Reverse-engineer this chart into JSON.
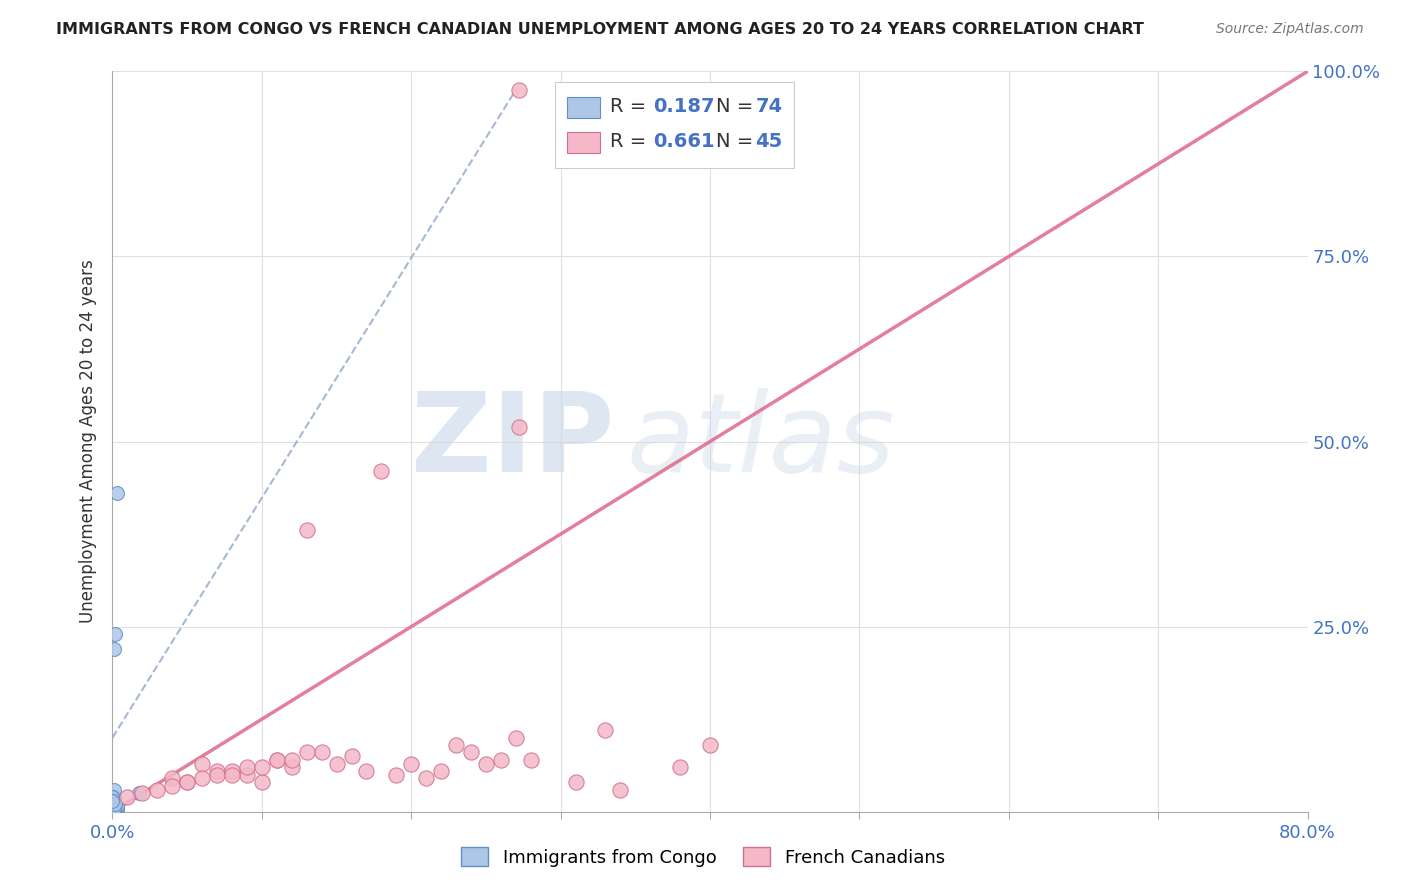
{
  "title": "IMMIGRANTS FROM CONGO VS FRENCH CANADIAN UNEMPLOYMENT AMONG AGES 20 TO 24 YEARS CORRELATION CHART",
  "source": "Source: ZipAtlas.com",
  "ylabel": "Unemployment Among Ages 20 to 24 years",
  "xlim": [
    0.0,
    0.8
  ],
  "ylim": [
    0.0,
    1.0
  ],
  "xticks": [
    0.0,
    0.1,
    0.2,
    0.3,
    0.4,
    0.5,
    0.6,
    0.7,
    0.8
  ],
  "yticks": [
    0.0,
    0.25,
    0.5,
    0.75,
    1.0
  ],
  "color_blue": "#aec6e8",
  "color_pink": "#f4b8c8",
  "color_blue_edge": "#6090c0",
  "color_pink_edge": "#d07090",
  "color_blue_text": "#4472C4",
  "watermark": "ZIPatlas",
  "watermark_color": "#c8d8e8",
  "series1_label": "Immigrants from Congo",
  "series2_label": "French Canadians",
  "R1": 0.187,
  "N1": 74,
  "R2": 0.661,
  "N2": 45,
  "seed": 42,
  "blue_points_x": [
    0.003,
    0.001,
    0.002,
    0.001,
    0.0,
    0.001,
    0.0,
    0.002,
    0.0,
    0.001,
    0.001,
    0.0,
    0.002,
    0.001,
    0.0,
    0.003,
    0.001,
    0.0,
    0.002,
    0.001,
    0.0,
    0.001,
    0.002,
    0.0,
    0.001,
    0.003,
    0.0,
    0.001,
    0.002,
    0.0,
    0.001,
    0.0,
    0.002,
    0.001,
    0.0,
    0.003,
    0.001,
    0.002,
    0.0,
    0.001,
    0.0,
    0.001,
    0.002,
    0.0,
    0.001,
    0.003,
    0.0,
    0.002,
    0.001,
    0.0,
    0.001,
    0.002,
    0.0,
    0.001,
    0.003,
    0.0,
    0.001,
    0.002,
    0.0,
    0.001,
    0.0,
    0.001,
    0.002,
    0.0,
    0.001,
    0.003,
    0.018,
    0.002,
    0.001,
    0.0,
    0.0,
    0.001,
    0.002,
    0.0
  ],
  "blue_points_y": [
    0.43,
    0.22,
    0.24,
    0.02,
    0.01,
    0.03,
    0.005,
    0.01,
    0.02,
    0.01,
    0.005,
    0.008,
    0.015,
    0.005,
    0.01,
    0.005,
    0.008,
    0.015,
    0.005,
    0.01,
    0.02,
    0.005,
    0.008,
    0.01,
    0.015,
    0.005,
    0.008,
    0.01,
    0.005,
    0.015,
    0.008,
    0.005,
    0.01,
    0.008,
    0.015,
    0.005,
    0.01,
    0.008,
    0.02,
    0.005,
    0.01,
    0.008,
    0.005,
    0.015,
    0.01,
    0.005,
    0.008,
    0.01,
    0.005,
    0.015,
    0.008,
    0.005,
    0.01,
    0.008,
    0.005,
    0.015,
    0.01,
    0.005,
    0.008,
    0.01,
    0.015,
    0.005,
    0.008,
    0.02,
    0.005,
    0.008,
    0.025,
    0.01,
    0.005,
    0.008,
    0.015,
    0.005,
    0.01,
    0.015
  ],
  "pink_points_x": [
    0.272,
    0.272,
    0.34,
    0.18,
    0.13,
    0.07,
    0.31,
    0.04,
    0.09,
    0.14,
    0.06,
    0.11,
    0.05,
    0.08,
    0.12,
    0.16,
    0.2,
    0.24,
    0.28,
    0.38,
    0.1,
    0.15,
    0.19,
    0.22,
    0.26,
    0.03,
    0.05,
    0.07,
    0.09,
    0.11,
    0.13,
    0.17,
    0.21,
    0.25,
    0.02,
    0.04,
    0.06,
    0.08,
    0.1,
    0.12,
    0.23,
    0.27,
    0.33,
    0.4,
    0.01
  ],
  "pink_points_y": [
    0.975,
    0.52,
    0.03,
    0.46,
    0.38,
    0.055,
    0.04,
    0.045,
    0.05,
    0.08,
    0.065,
    0.07,
    0.04,
    0.055,
    0.06,
    0.075,
    0.065,
    0.08,
    0.07,
    0.06,
    0.04,
    0.065,
    0.05,
    0.055,
    0.07,
    0.03,
    0.04,
    0.05,
    0.06,
    0.07,
    0.08,
    0.055,
    0.045,
    0.065,
    0.025,
    0.035,
    0.045,
    0.05,
    0.06,
    0.07,
    0.09,
    0.1,
    0.11,
    0.09,
    0.02
  ],
  "pink_trend_x": [
    0.0,
    0.8
  ],
  "pink_trend_y": [
    0.0,
    1.0
  ],
  "blue_trend_x": [
    0.0,
    0.27
  ],
  "blue_trend_y": [
    0.1,
    0.975
  ]
}
